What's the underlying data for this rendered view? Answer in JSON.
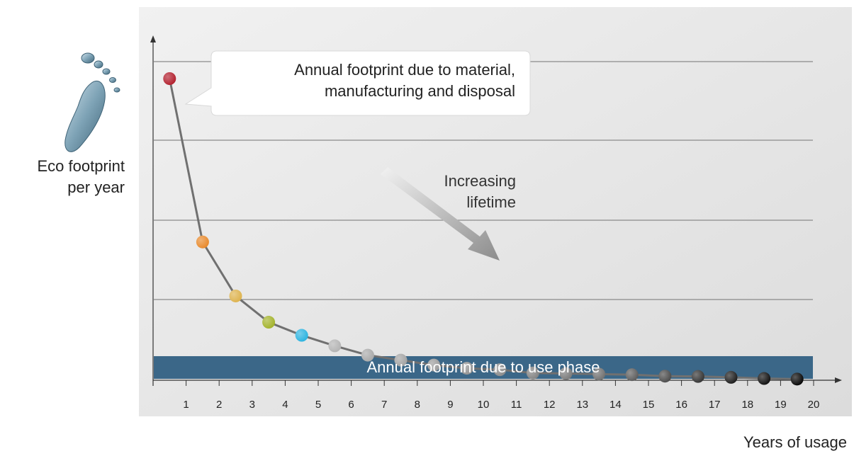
{
  "chart_data": {
    "type": "line",
    "title": "",
    "ylabel": "Eco footprint\nper year",
    "xlabel": "Years of usage",
    "xlim": [
      0,
      20
    ],
    "x_ticks": [
      "1",
      "2",
      "3",
      "4",
      "5",
      "6",
      "7",
      "8",
      "9",
      "10",
      "11",
      "12",
      "13",
      "14",
      "15",
      "16",
      "17",
      "18",
      "19",
      "20"
    ],
    "grid": true,
    "series": [
      {
        "x": [
          0.5,
          1.5,
          2.5,
          3.5,
          4.5,
          5.5,
          6.5,
          7.5,
          8.5,
          9.5,
          10.5,
          11.5,
          12.5,
          13.5,
          14.5,
          15.5,
          16.5,
          17.5,
          18.5,
          19.5
        ],
        "values": [
          100,
          44,
          25.5,
          16.5,
          12,
          8.4,
          5.2,
          3.5,
          1.8,
          0.7,
          0.2,
          -0.9,
          -1.1,
          -1.3,
          -1.5,
          -2.0,
          -2.1,
          -2.4,
          -2.8,
          -3.0
        ],
        "point_colors": [
          "#b21f2d",
          "#e8892b",
          "#ddb24c",
          "#a2b22a",
          "#2bb3e0",
          "#b3b3b3",
          "#a9a9a9",
          "#a3a3a3",
          "#9b9b9b",
          "#939393",
          "#8b8b8b",
          "#828282",
          "#7a7a7a",
          "#707070",
          "#5c5c5c",
          "#4a4a4a",
          "#333333",
          "#1c1c1c",
          "#0f0f0f",
          "#050505"
        ]
      }
    ],
    "use_phase_band": {
      "label": "Annual footprint due to use phase",
      "color": "#3b6788"
    },
    "annotations": {
      "callout": "Annual footprint due to material,\nmanufacturing and disposal",
      "arrow": "Increasing\nlifetime"
    }
  },
  "colors": {
    "plot_background": "#e4e4e4",
    "gridline": "#8a8a8a",
    "line": "#707070",
    "footprint_icon": "#6f93a6"
  },
  "icons": [
    "footprint-icon",
    "lifetime-arrow-icon"
  ]
}
